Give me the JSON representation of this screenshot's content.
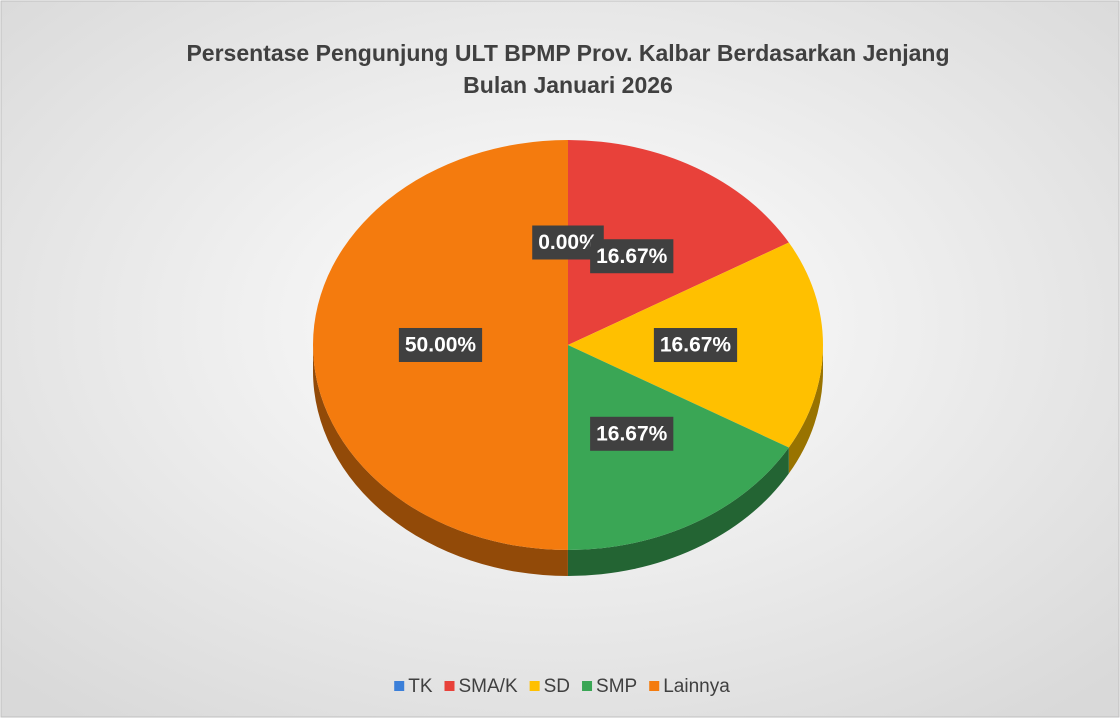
{
  "chart_data": {
    "type": "pie",
    "title": [
      "Persentase Pengunjung ULT BPMP Prov. Kalbar Berdasarkan Jenjang",
      "Bulan Januari 2026"
    ],
    "categories": [
      "TK",
      "SMA/K",
      "SD",
      "SMP",
      "Lainnya"
    ],
    "values": [
      0,
      16.67,
      16.67,
      16.67,
      50
    ],
    "value_labels": [
      "0.00%",
      "16.67%",
      "16.67%",
      "16.67%",
      "50.00%"
    ],
    "colors": [
      "#3b7fd9",
      "#e8413a",
      "#ffc000",
      "#3aa655",
      "#f47b0e"
    ],
    "legend": "bottom"
  }
}
